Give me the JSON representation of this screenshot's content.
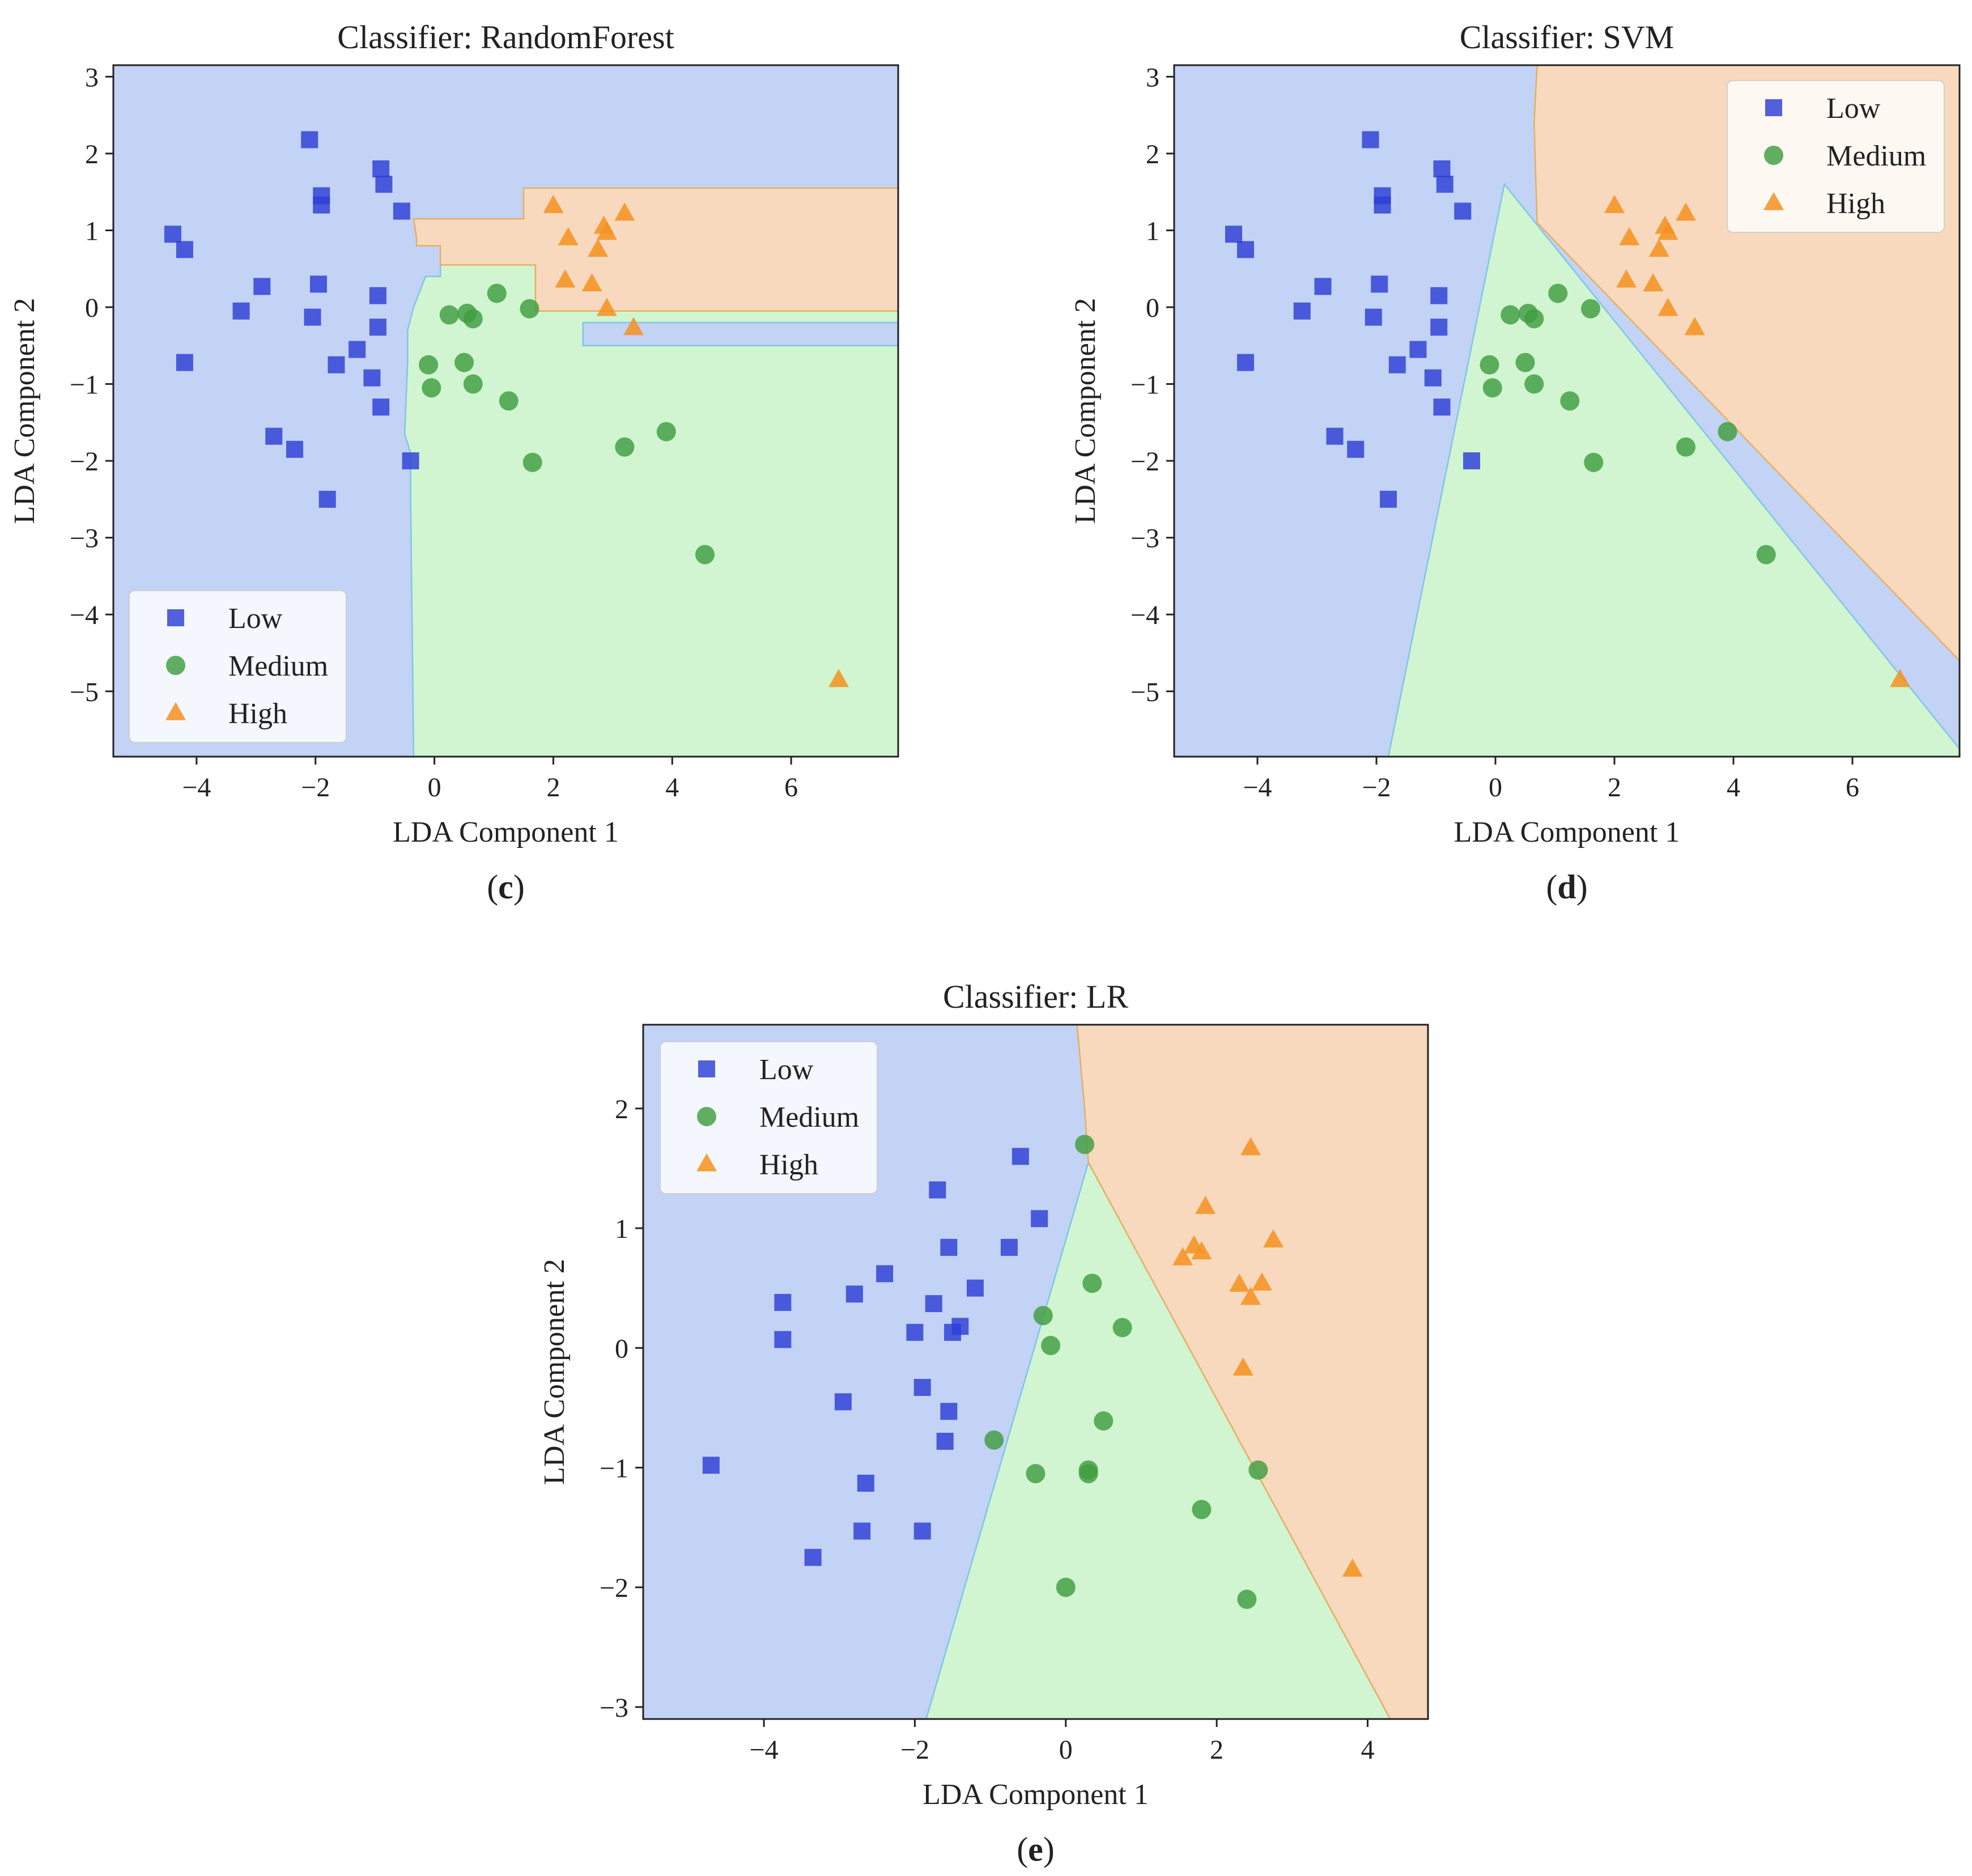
{
  "figure": {
    "panels": [
      "c",
      "d",
      "e"
    ]
  },
  "legend_entries": [
    "Low",
    "Medium",
    "High"
  ],
  "colors": {
    "low_region": "#c2d3f5",
    "medium_region": "#d0f5d0",
    "high_region": "#f8d9bd",
    "low_marker": "#2d3ed6",
    "medium_marker": "#3f9e3f",
    "high_marker": "#f59020",
    "low_boundary": "#7fc6e6",
    "high_boundary": "#e5b060"
  },
  "chart_data": [
    {
      "type": "scatter",
      "panel_label": "c",
      "title": "Classifier: RandomForest",
      "xlabel": "LDA Component 1",
      "ylabel": "LDA Component 2",
      "xlim": [
        -5.4,
        7.8
      ],
      "ylim": [
        -5.85,
        3.15
      ],
      "xticks": [
        -4,
        -2,
        0,
        2,
        4,
        6
      ],
      "yticks": [
        -5,
        -4,
        -3,
        -2,
        -1,
        0,
        1,
        2,
        3
      ],
      "xtick_labels": [
        "−4",
        "−2",
        "0",
        "2",
        "4",
        "6"
      ],
      "ytick_labels": [
        "−5",
        "−4",
        "−3",
        "−2",
        "−1",
        "0",
        "1",
        "2",
        "3"
      ],
      "legend_position": "lower-left",
      "decision_regions": [
        {
          "class": "Medium",
          "polygon": [
            [
              -0.35,
              -5.85
            ],
            [
              7.8,
              -5.85
            ],
            [
              7.8,
              -0.5
            ],
            [
              2.5,
              -0.5
            ],
            [
              2.5,
              -0.2
            ],
            [
              7.8,
              -0.2
            ],
            [
              7.8,
              -0.05
            ],
            [
              1.7,
              -0.05
            ],
            [
              1.7,
              0.55
            ],
            [
              0.1,
              0.55
            ],
            [
              0.1,
              0.4
            ],
            [
              -0.15,
              0.4
            ],
            [
              -0.25,
              0.2
            ],
            [
              -0.35,
              0.0
            ],
            [
              -0.45,
              -0.3
            ],
            [
              -0.45,
              -0.7
            ],
            [
              -0.5,
              -1.65
            ],
            [
              -0.4,
              -1.9
            ],
            [
              -0.4,
              -2.5
            ],
            [
              -0.35,
              -5.85
            ]
          ]
        },
        {
          "class": "High",
          "polygon": [
            [
              -0.35,
              1.15
            ],
            [
              1.5,
              1.15
            ],
            [
              1.5,
              1.55
            ],
            [
              7.8,
              1.55
            ],
            [
              7.8,
              -0.05
            ],
            [
              1.7,
              -0.05
            ],
            [
              1.7,
              0.55
            ],
            [
              0.1,
              0.55
            ],
            [
              0.1,
              0.8
            ],
            [
              -0.3,
              0.8
            ],
            [
              -0.3,
              0.9
            ],
            [
              -0.35,
              1.15
            ]
          ]
        }
      ],
      "series": [
        {
          "name": "Low",
          "marker": "square",
          "points": [
            [
              -4.4,
              0.95
            ],
            [
              -4.2,
              0.75
            ],
            [
              -4.2,
              -0.72
            ],
            [
              -3.25,
              -0.05
            ],
            [
              -2.9,
              0.27
            ],
            [
              -2.7,
              -1.68
            ],
            [
              -2.35,
              -1.85
            ],
            [
              -2.1,
              2.18
            ],
            [
              -2.05,
              -0.13
            ],
            [
              -1.95,
              0.3
            ],
            [
              -1.9,
              1.45
            ],
            [
              -1.9,
              1.33
            ],
            [
              -1.8,
              -2.5
            ],
            [
              -1.65,
              -0.75
            ],
            [
              -1.3,
              -0.55
            ],
            [
              -1.05,
              -0.92
            ],
            [
              -0.95,
              0.15
            ],
            [
              -0.95,
              -0.26
            ],
            [
              -0.9,
              -1.3
            ],
            [
              -0.9,
              1.8
            ],
            [
              -0.85,
              1.6
            ],
            [
              -0.55,
              1.25
            ],
            [
              -0.4,
              -2.0
            ]
          ]
        },
        {
          "name": "Medium",
          "marker": "circle",
          "points": [
            [
              0.25,
              -0.1
            ],
            [
              0.55,
              -0.08
            ],
            [
              0.65,
              -0.15
            ],
            [
              1.05,
              0.18
            ],
            [
              1.6,
              -0.02
            ],
            [
              -0.1,
              -0.75
            ],
            [
              -0.05,
              -1.05
            ],
            [
              0.5,
              -0.72
            ],
            [
              0.65,
              -1.0
            ],
            [
              1.25,
              -1.22
            ],
            [
              1.65,
              -2.02
            ],
            [
              3.2,
              -1.82
            ],
            [
              3.9,
              -1.62
            ],
            [
              4.55,
              -3.22
            ]
          ]
        },
        {
          "name": "High",
          "marker": "triangle",
          "points": [
            [
              2.0,
              1.32
            ],
            [
              2.25,
              0.9
            ],
            [
              2.2,
              0.35
            ],
            [
              2.65,
              0.3
            ],
            [
              2.75,
              0.75
            ],
            [
              2.85,
              1.05
            ],
            [
              2.9,
              0.97
            ],
            [
              3.2,
              1.22
            ],
            [
              2.9,
              -0.02
            ],
            [
              3.35,
              -0.27
            ],
            [
              6.8,
              -4.85
            ]
          ]
        }
      ]
    },
    {
      "type": "scatter",
      "panel_label": "d",
      "title": "Classifier: SVM",
      "xlabel": "LDA Component 1",
      "ylabel": "LDA Component 2",
      "xlim": [
        -5.4,
        7.8
      ],
      "ylim": [
        -5.85,
        3.15
      ],
      "xticks": [
        -4,
        -2,
        0,
        2,
        4,
        6
      ],
      "yticks": [
        -5,
        -4,
        -3,
        -2,
        -1,
        0,
        1,
        2,
        3
      ],
      "xtick_labels": [
        "−4",
        "−2",
        "0",
        "2",
        "4",
        "6"
      ],
      "ytick_labels": [
        "−5",
        "−4",
        "−3",
        "−2",
        "−1",
        "0",
        "1",
        "2",
        "3"
      ],
      "legend_position": "upper-right",
      "decision_regions": [
        {
          "class": "Medium",
          "polygon": [
            [
              0.15,
              1.6
            ],
            [
              -1.8,
              -5.85
            ],
            [
              7.8,
              -5.85
            ],
            [
              7.8,
              -5.75
            ]
          ]
        },
        {
          "class": "High",
          "polygon": [
            [
              0.7,
              3.15
            ],
            [
              7.8,
              3.15
            ],
            [
              7.8,
              -4.6
            ],
            [
              0.7,
              1.1
            ],
            [
              0.65,
              2.4
            ]
          ]
        }
      ],
      "series": [
        {
          "name": "Low",
          "marker": "square",
          "points": [
            [
              -4.4,
              0.95
            ],
            [
              -4.2,
              0.75
            ],
            [
              -4.2,
              -0.72
            ],
            [
              -3.25,
              -0.05
            ],
            [
              -2.9,
              0.27
            ],
            [
              -2.7,
              -1.68
            ],
            [
              -2.35,
              -1.85
            ],
            [
              -2.1,
              2.18
            ],
            [
              -2.05,
              -0.13
            ],
            [
              -1.95,
              0.3
            ],
            [
              -1.9,
              1.45
            ],
            [
              -1.9,
              1.33
            ],
            [
              -1.8,
              -2.5
            ],
            [
              -1.65,
              -0.75
            ],
            [
              -1.3,
              -0.55
            ],
            [
              -1.05,
              -0.92
            ],
            [
              -0.95,
              0.15
            ],
            [
              -0.95,
              -0.26
            ],
            [
              -0.9,
              -1.3
            ],
            [
              -0.9,
              1.8
            ],
            [
              -0.85,
              1.6
            ],
            [
              -0.55,
              1.25
            ],
            [
              -0.4,
              -2.0
            ]
          ]
        },
        {
          "name": "Medium",
          "marker": "circle",
          "points": [
            [
              0.25,
              -0.1
            ],
            [
              0.55,
              -0.08
            ],
            [
              0.65,
              -0.15
            ],
            [
              1.05,
              0.18
            ],
            [
              1.6,
              -0.02
            ],
            [
              -0.1,
              -0.75
            ],
            [
              -0.05,
              -1.05
            ],
            [
              0.5,
              -0.72
            ],
            [
              0.65,
              -1.0
            ],
            [
              1.25,
              -1.22
            ],
            [
              1.65,
              -2.02
            ],
            [
              3.2,
              -1.82
            ],
            [
              3.9,
              -1.62
            ],
            [
              4.55,
              -3.22
            ]
          ]
        },
        {
          "name": "High",
          "marker": "triangle",
          "points": [
            [
              2.0,
              1.32
            ],
            [
              2.25,
              0.9
            ],
            [
              2.2,
              0.35
            ],
            [
              2.65,
              0.3
            ],
            [
              2.75,
              0.75
            ],
            [
              2.85,
              1.05
            ],
            [
              2.9,
              0.97
            ],
            [
              3.2,
              1.22
            ],
            [
              2.9,
              -0.02
            ],
            [
              3.35,
              -0.27
            ],
            [
              6.8,
              -4.85
            ]
          ]
        }
      ]
    },
    {
      "type": "scatter",
      "panel_label": "e",
      "title": "Classifier: LR",
      "xlabel": "LDA Component 1",
      "ylabel": "LDA Component 2",
      "xlim": [
        -5.6,
        4.8
      ],
      "ylim": [
        -3.1,
        2.7
      ],
      "xticks": [
        -4,
        -2,
        0,
        2,
        4
      ],
      "yticks": [
        -3,
        -2,
        -1,
        0,
        1,
        2
      ],
      "xtick_labels": [
        "−4",
        "−2",
        "0",
        "2",
        "4"
      ],
      "ytick_labels": [
        "−3",
        "−2",
        "−1",
        "0",
        "1",
        "2"
      ],
      "legend_position": "upper-left",
      "decision_regions": [
        {
          "class": "Medium",
          "polygon": [
            [
              0.3,
              1.55
            ],
            [
              -1.85,
              -3.1
            ],
            [
              4.3,
              -3.1
            ]
          ]
        },
        {
          "class": "High",
          "polygon": [
            [
              0.15,
              2.7
            ],
            [
              4.8,
              2.7
            ],
            [
              4.8,
              -3.1
            ],
            [
              4.3,
              -3.1
            ],
            [
              0.3,
              1.55
            ],
            [
              0.25,
              2.0
            ]
          ]
        }
      ],
      "series": [
        {
          "name": "Low",
          "marker": "square",
          "points": [
            [
              -4.7,
              -0.98
            ],
            [
              -3.75,
              0.38
            ],
            [
              -3.75,
              0.07
            ],
            [
              -3.35,
              -1.75
            ],
            [
              -2.95,
              -0.45
            ],
            [
              -2.8,
              0.45
            ],
            [
              -2.65,
              -1.13
            ],
            [
              -2.7,
              -1.53
            ],
            [
              -2.4,
              0.62
            ],
            [
              -2.0,
              0.13
            ],
            [
              -1.9,
              -0.33
            ],
            [
              -1.9,
              -1.53
            ],
            [
              -1.75,
              0.37
            ],
            [
              -1.7,
              1.32
            ],
            [
              -1.6,
              -0.78
            ],
            [
              -1.55,
              0.84
            ],
            [
              -1.55,
              -0.53
            ],
            [
              -1.5,
              0.13
            ],
            [
              -1.4,
              0.18
            ],
            [
              -1.2,
              0.5
            ],
            [
              -0.75,
              0.84
            ],
            [
              -0.6,
              1.6
            ],
            [
              -0.35,
              1.08
            ]
          ]
        },
        {
          "name": "Medium",
          "marker": "circle",
          "points": [
            [
              0.25,
              1.7
            ],
            [
              -0.95,
              -0.77
            ],
            [
              -0.4,
              -1.05
            ],
            [
              -0.3,
              0.27
            ],
            [
              -0.2,
              0.02
            ],
            [
              0.0,
              -2.0
            ],
            [
              0.3,
              -1.02
            ],
            [
              0.3,
              -1.05
            ],
            [
              0.35,
              0.54
            ],
            [
              0.5,
              -0.61
            ],
            [
              0.75,
              0.17
            ],
            [
              1.8,
              -1.35
            ],
            [
              2.4,
              -2.1
            ],
            [
              2.55,
              -1.02
            ]
          ]
        },
        {
          "name": "High",
          "marker": "triangle",
          "points": [
            [
              1.55,
              0.75
            ],
            [
              1.7,
              0.85
            ],
            [
              1.8,
              0.8
            ],
            [
              1.85,
              1.18
            ],
            [
              2.3,
              0.53
            ],
            [
              2.35,
              -0.17
            ],
            [
              2.45,
              0.42
            ],
            [
              2.45,
              1.67
            ],
            [
              2.6,
              0.54
            ],
            [
              2.75,
              0.9
            ],
            [
              3.8,
              -1.85
            ]
          ]
        }
      ]
    }
  ]
}
